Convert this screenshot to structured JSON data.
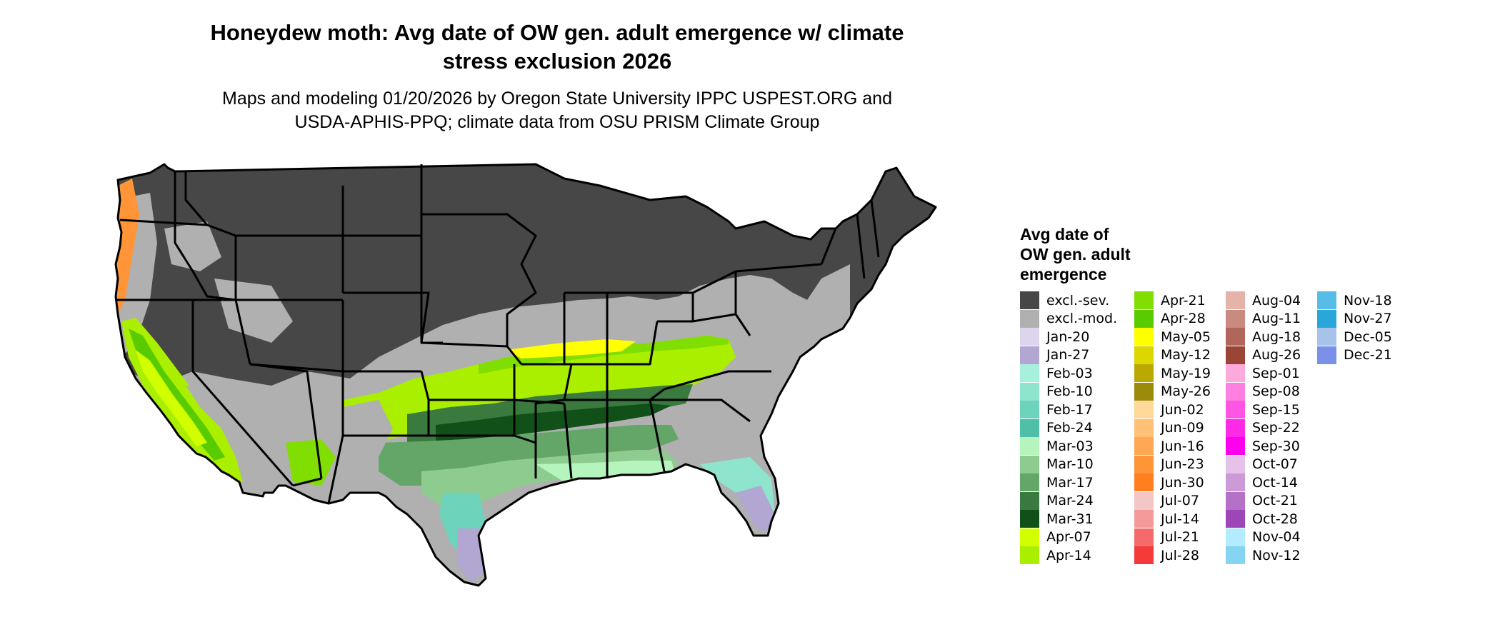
{
  "title_line1": "Honeydew moth: Avg date of OW gen. adult emergence w/ climate",
  "title_line2": "stress exclusion 2026",
  "subtitle_line1": "Maps and modeling 01/20/2026 by Oregon State University IPPC USPEST.ORG and",
  "subtitle_line2": "USDA-APHIS-PPQ; climate data from OSU PRISM Climate Group",
  "legend": {
    "title": "Avg date of\nOW gen. adult\nemergence",
    "columns": [
      [
        {
          "label": "excl.-sev.",
          "color": "#474747"
        },
        {
          "label": "excl.-mod.",
          "color": "#b0b0b0"
        },
        {
          "label": "Jan-20",
          "color": "#ddd4ee"
        },
        {
          "label": "Jan-27",
          "color": "#b2a6d2"
        },
        {
          "label": "Feb-03",
          "color": "#a8f0de"
        },
        {
          "label": "Feb-10",
          "color": "#8ee4cd"
        },
        {
          "label": "Feb-17",
          "color": "#6ed3bb"
        },
        {
          "label": "Feb-24",
          "color": "#4fbfa8"
        },
        {
          "label": "Mar-03",
          "color": "#b5f5bd"
        },
        {
          "label": "Mar-10",
          "color": "#8dcc8e"
        },
        {
          "label": "Mar-17",
          "color": "#63a667"
        },
        {
          "label": "Mar-24",
          "color": "#3a7a3e"
        },
        {
          "label": "Mar-31",
          "color": "#12501a"
        },
        {
          "label": "Apr-07",
          "color": "#d2ff00"
        },
        {
          "label": "Apr-14",
          "color": "#aaee00"
        }
      ],
      [
        {
          "label": "Apr-21",
          "color": "#80de00"
        },
        {
          "label": "Apr-28",
          "color": "#58cc00"
        },
        {
          "label": "May-05",
          "color": "#ffff00"
        },
        {
          "label": "May-12",
          "color": "#dcd700"
        },
        {
          "label": "May-19",
          "color": "#bca900"
        },
        {
          "label": "May-26",
          "color": "#9c8a0a"
        },
        {
          "label": "Jun-02",
          "color": "#ffd999"
        },
        {
          "label": "Jun-09",
          "color": "#ffc176"
        },
        {
          "label": "Jun-16",
          "color": "#ffa853"
        },
        {
          "label": "Jun-23",
          "color": "#ff9536"
        },
        {
          "label": "Jun-30",
          "color": "#ff7f1e"
        },
        {
          "label": "Jul-07",
          "color": "#f4c6c6"
        },
        {
          "label": "Jul-14",
          "color": "#f59a9a"
        },
        {
          "label": "Jul-21",
          "color": "#f56b6b"
        },
        {
          "label": "Jul-28",
          "color": "#f53a3a"
        }
      ],
      [
        {
          "label": "Aug-04",
          "color": "#e6b3aa"
        },
        {
          "label": "Aug-11",
          "color": "#c98a80"
        },
        {
          "label": "Aug-18",
          "color": "#b0665a"
        },
        {
          "label": "Aug-26",
          "color": "#9a4535"
        },
        {
          "label": "Sep-01",
          "color": "#ffaadd"
        },
        {
          "label": "Sep-08",
          "color": "#ff80e0"
        },
        {
          "label": "Sep-15",
          "color": "#ff55e5"
        },
        {
          "label": "Sep-22",
          "color": "#ff2ae8"
        },
        {
          "label": "Sep-30",
          "color": "#ff00ee"
        },
        {
          "label": "Oct-07",
          "color": "#e6c1ea"
        },
        {
          "label": "Oct-14",
          "color": "#cc9ad6"
        },
        {
          "label": "Oct-21",
          "color": "#b570c8"
        },
        {
          "label": "Oct-28",
          "color": "#9e45b8"
        },
        {
          "label": "Nov-04",
          "color": "#b3ecff"
        },
        {
          "label": "Nov-12",
          "color": "#85d4f2"
        }
      ],
      [
        {
          "label": "Nov-18",
          "color": "#55bde6"
        },
        {
          "label": "Nov-27",
          "color": "#29a7da"
        },
        {
          "label": "Dec-05",
          "color": "#a8c3ea"
        },
        {
          "label": "Dec-21",
          "color": "#7b90e8"
        }
      ]
    ]
  }
}
